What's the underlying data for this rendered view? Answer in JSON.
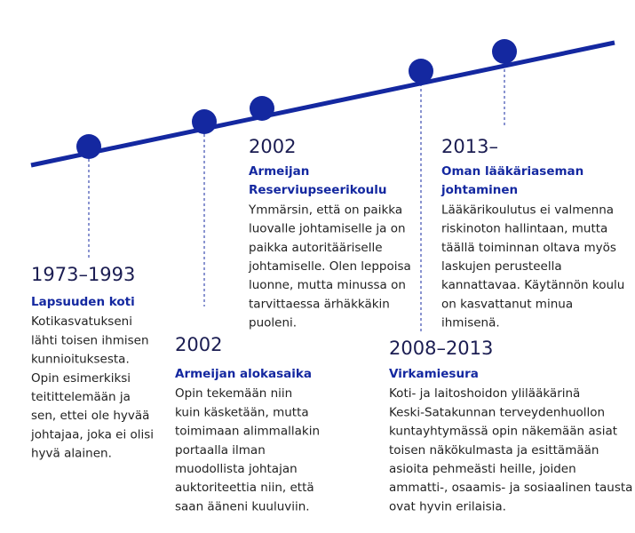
{
  "events": [
    {
      "year": "1973–1993",
      "title": [
        "Lapsuuden koti"
      ],
      "text": [
        "Kotikasvatukseni",
        "lähti toisen ihmisen",
        "kunnioituksesta.",
        "Opin esimerkiksi",
        "teitittelemään ja",
        "sen, ettei ole hyvää",
        "johtajaa, joka ei olisi",
        "hyvä alainen."
      ]
    },
    {
      "year": "2002",
      "title": [
        "Armeijan alokasaika"
      ],
      "text": [
        "Opin tekemään niin",
        "kuin käsketään, mutta",
        "toimimaan alimmallakin",
        "portaalla ilman",
        "muodollista johtajan",
        "auktoriteettia niin, että",
        "saan ääneni kuuluviin."
      ]
    },
    {
      "year": "2002",
      "title": [
        "Armeijan",
        "Reserviupseerikoulu"
      ],
      "text": [
        "Ymmärsin, että on paikka",
        "luovalle johtamiselle ja on",
        "paikka autoritääriselle",
        "johtamiselle. Olen leppoisa",
        "luonne, mutta minussa on",
        "tarvittaessa ärhäkkäkin",
        "puoleni."
      ]
    },
    {
      "year": "2008–2013",
      "title": [
        "Virkamiesura"
      ],
      "text": [
        "Koti- ja laitoshoidon ylilääkärinä",
        "Keski-Satakunnan terveydenhuollon",
        "kuntayhtymässä opin näkemään asiat",
        "toisen näkökulmasta ja esittämään",
        "asioita pehmeästi heille, joiden",
        "ammatti-, osaamis- ja sosiaalinen tausta",
        "ovat hyvin erilaisia."
      ]
    },
    {
      "year": "2013–",
      "title": [
        "Oman lääkäriaseman",
        "johtaminen"
      ],
      "text": [
        "Lääkärikoulutus ei valmenna",
        "riskinoton hallintaan, mutta",
        "täällä toiminnan oltava myös",
        "laskujen perusteella",
        "kannattavaa. Käytännön koulu",
        "on kasvattanut minua",
        "ihmisenä."
      ]
    }
  ]
}
